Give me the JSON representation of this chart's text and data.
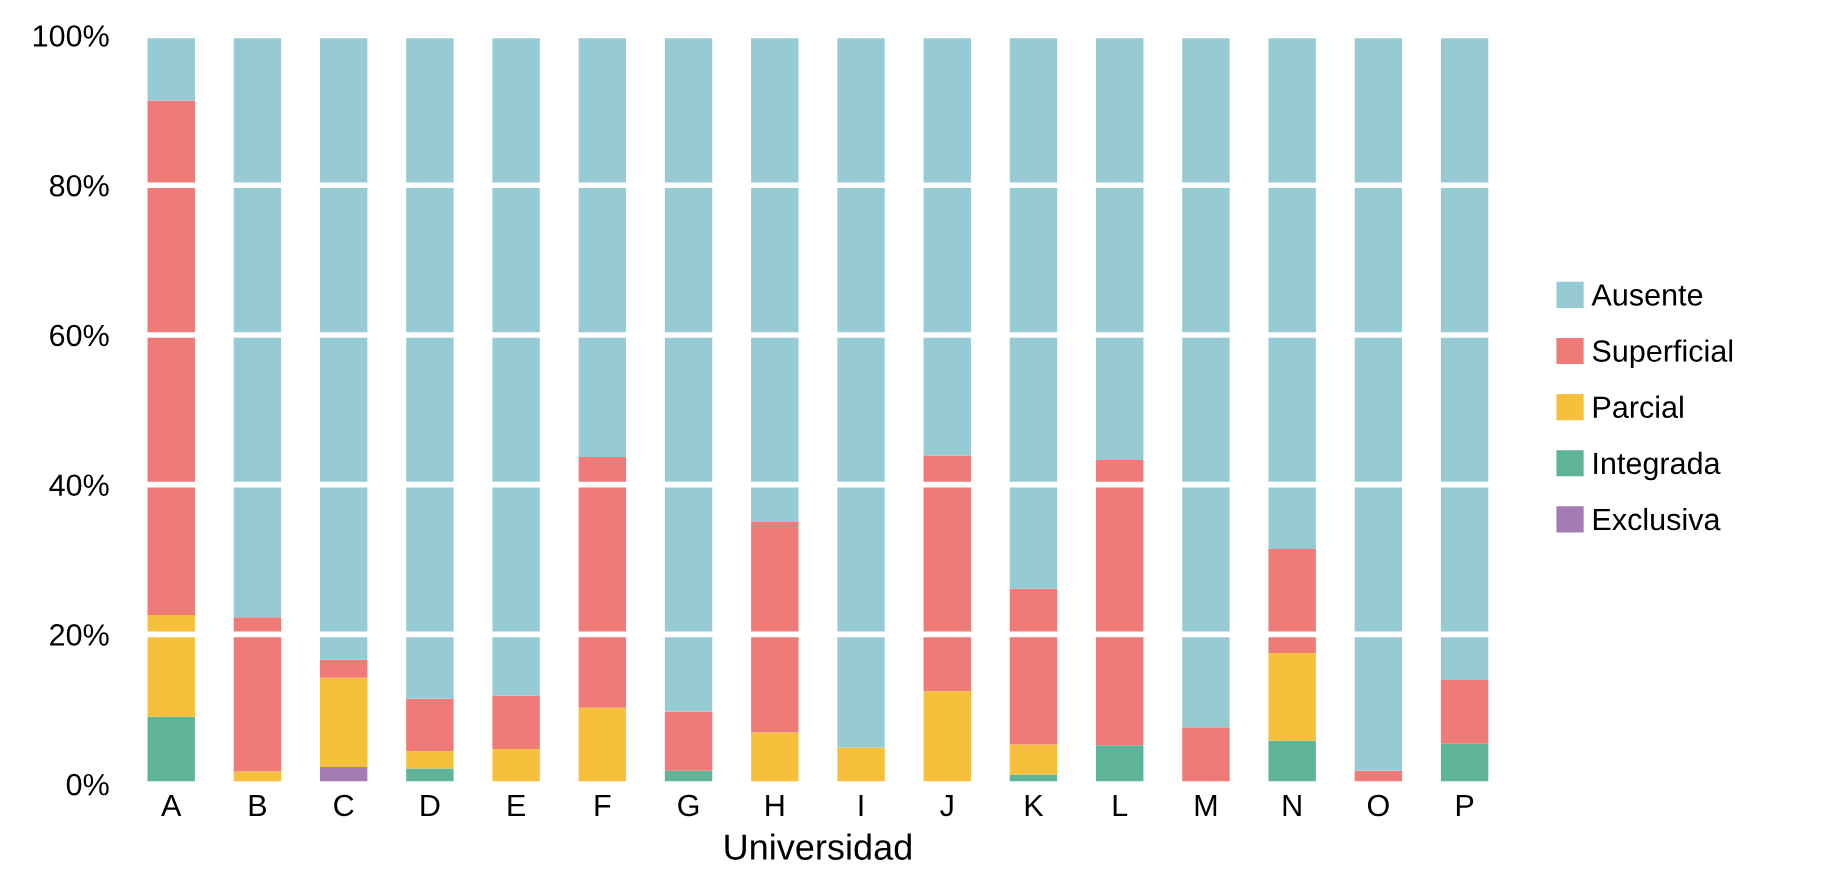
{
  "chart_data": {
    "type": "bar",
    "stacked": true,
    "xlabel": "Universidad",
    "categories": [
      "A",
      "B",
      "C",
      "D",
      "E",
      "F",
      "G",
      "H",
      "I",
      "J",
      "K",
      "L",
      "M",
      "N",
      "O",
      "P"
    ],
    "series": [
      {
        "name": "Exclusiva",
        "color": "#a57bb5",
        "values": [
          0,
          0,
          2.3,
          0,
          0,
          0,
          0,
          0,
          0,
          0,
          0,
          0,
          0,
          0,
          0,
          0
        ]
      },
      {
        "name": "Integrada",
        "color": "#5fb398",
        "values": [
          9.0,
          0,
          0,
          2.1,
          0,
          0,
          1.8,
          0,
          0,
          0,
          1.3,
          5.2,
          0,
          5.8,
          0,
          5.4
        ]
      },
      {
        "name": "Parcial",
        "color": "#f7c03c",
        "values": [
          13.6,
          1.7,
          11.9,
          2.3,
          4.7,
          10.2,
          0,
          6.9,
          4.9,
          12.4,
          4.0,
          0,
          0,
          11.7,
          0,
          0
        ]
      },
      {
        "name": "Superficial",
        "color": "#ee7b77",
        "values": [
          68.7,
          20.6,
          2.4,
          7.0,
          7.1,
          33.5,
          7.9,
          28.1,
          0,
          31.5,
          20.8,
          38.1,
          7.6,
          13.9,
          1.8,
          8.5
        ]
      },
      {
        "name": "Ausente",
        "color": "#96cbd4",
        "values": [
          8.7,
          77.7,
          83.4,
          88.6,
          88.2,
          56.3,
          90.3,
          65.0,
          95.1,
          56.1,
          73.9,
          56.7,
          92.4,
          68.6,
          98.2,
          86.1
        ]
      }
    ],
    "ylim": [
      0,
      100
    ],
    "yticks": [
      {
        "value": 0,
        "label": "0%"
      },
      {
        "value": 20,
        "label": "20%"
      },
      {
        "value": 40,
        "label": "40%"
      },
      {
        "value": 60,
        "label": "60%"
      },
      {
        "value": 80,
        "label": "80%"
      },
      {
        "value": 100,
        "label": "100%"
      }
    ],
    "grid": "y",
    "legend": "right"
  }
}
